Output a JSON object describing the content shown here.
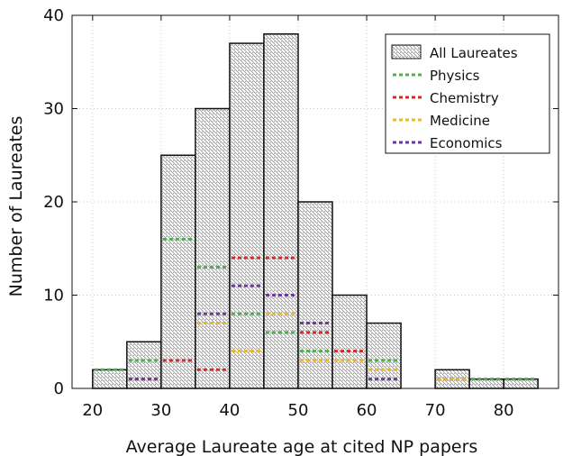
{
  "chart_data": {
    "type": "bar",
    "xlabel": "Average Laureate age at cited NP papers",
    "ylabel": "Number of Laureates",
    "xlim": [
      17,
      88
    ],
    "ylim": [
      0,
      40
    ],
    "xticks": [
      20,
      30,
      40,
      50,
      60,
      70,
      80
    ],
    "yticks": [
      0,
      10,
      20,
      30,
      40
    ],
    "bin_width": 5,
    "bins_start": [
      20,
      25,
      30,
      35,
      40,
      45,
      50,
      55,
      60,
      65,
      70,
      75,
      80
    ],
    "grid": true,
    "legend_position": "top-right",
    "series": [
      {
        "name": "All Laureates",
        "style": "hatched-bar",
        "color": "#222222",
        "values": [
          2,
          5,
          25,
          30,
          37,
          38,
          20,
          10,
          7,
          0,
          2,
          1,
          1
        ]
      },
      {
        "name": "Physics",
        "style": "dashed-line",
        "color": "#4caf50",
        "values": [
          2,
          3,
          16,
          13,
          8,
          6,
          4,
          3,
          3,
          0,
          1,
          1,
          1
        ]
      },
      {
        "name": "Chemistry",
        "style": "dashed-line",
        "color": "#d42a2a",
        "values": [
          0,
          1,
          3,
          2,
          14,
          14,
          6,
          4,
          0,
          0,
          1,
          0,
          0
        ]
      },
      {
        "name": "Medicine",
        "style": "dashed-line",
        "color": "#f0b428",
        "values": [
          0,
          0,
          0,
          7,
          4,
          8,
          3,
          3,
          2,
          0,
          1,
          0,
          0
        ]
      },
      {
        "name": "Economics",
        "style": "dashed-line",
        "color": "#6b3aa0",
        "values": [
          0,
          1,
          0,
          8,
          11,
          10,
          7,
          0,
          1,
          0,
          0,
          0,
          0
        ]
      }
    ]
  }
}
